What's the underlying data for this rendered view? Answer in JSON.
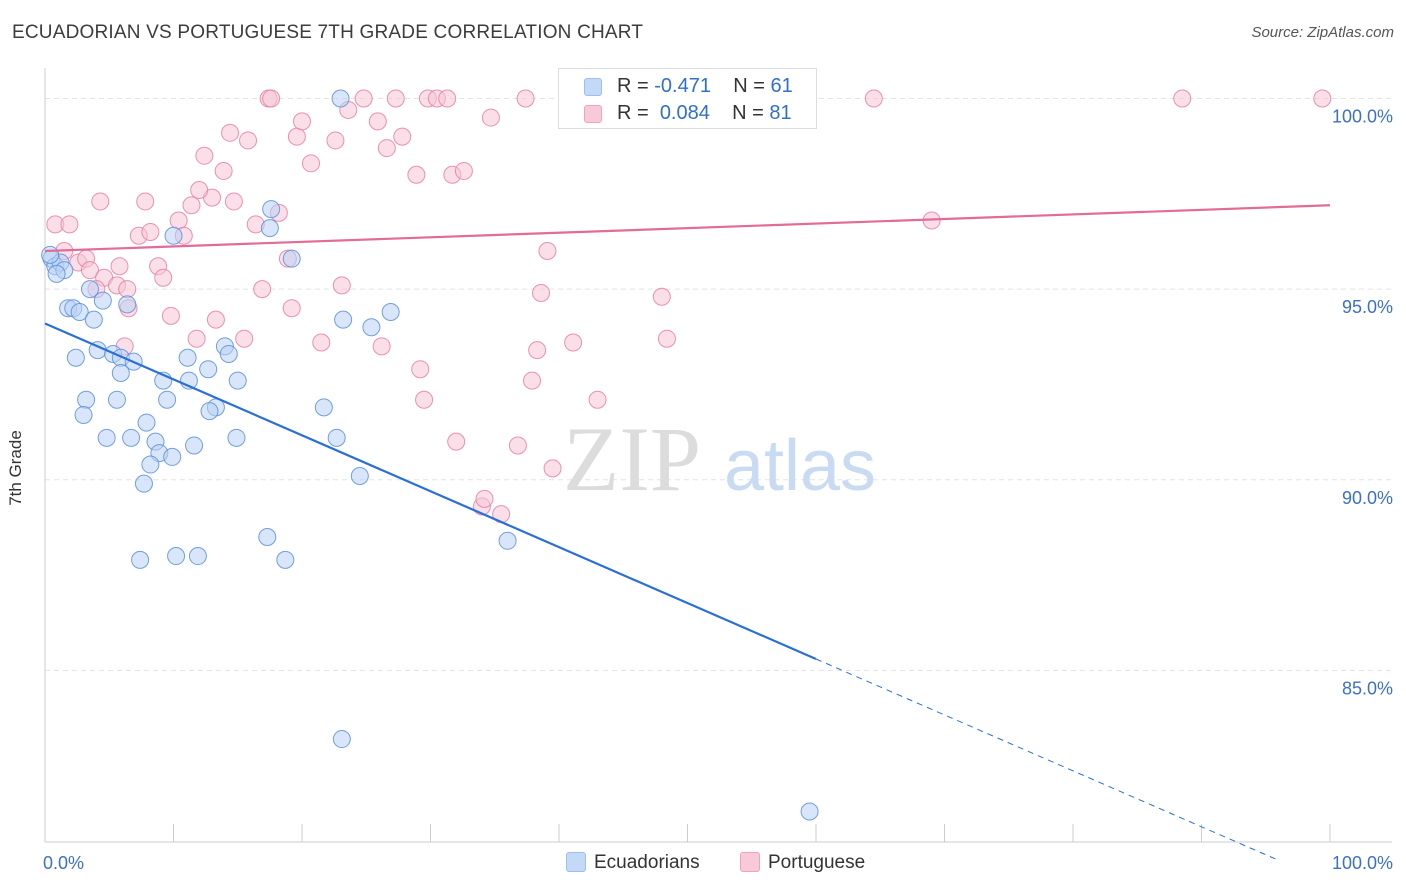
{
  "title": "ECUADORIAN VS PORTUGUESE 7TH GRADE CORRELATION CHART",
  "source": "Source: ZipAtlas.com",
  "watermark": {
    "zip": "ZIP",
    "atlas": "atlas"
  },
  "legend_stats": [
    {
      "r_label": "R =",
      "r_value": "-0.471",
      "n_label": "N =",
      "n_value": "61",
      "color": "#9dbff0",
      "fill": "#c4d9f7"
    },
    {
      "r_label": "R =",
      "r_value": "0.084",
      "n_label": "N =",
      "n_value": "81",
      "color": "#f0a3bd",
      "fill": "#f8cad9"
    }
  ],
  "chart_data": {
    "type": "scatter",
    "title": "ECUADORIAN VS PORTUGUESE 7TH GRADE CORRELATION CHART",
    "xlabel": "",
    "ylabel": "7th Grade",
    "xlim": [
      0,
      100
    ],
    "ylim": [
      80.5,
      100.8
    ],
    "x_tick_labels": [
      "0.0%",
      "100.0%"
    ],
    "y_ticks": [
      85,
      90,
      95,
      100
    ],
    "y_tick_labels": [
      "85.0%",
      "90.0%",
      "95.0%",
      "100.0%"
    ],
    "grid": true,
    "legend_position": "bottom-center",
    "series": [
      {
        "name": "Ecuadorians",
        "color": "#5b8fdb",
        "fill": "#b9d1f4",
        "trend": {
          "x0": 0,
          "y0": 94.1,
          "x1": 60,
          "y1": 85.3,
          "dash_to_x": 96
        },
        "points": [
          [
            0.5,
            95.8
          ],
          [
            0.8,
            95.6
          ],
          [
            1.2,
            95.7
          ],
          [
            1.5,
            95.5
          ],
          [
            0.9,
            95.4
          ],
          [
            1.8,
            94.5
          ],
          [
            2.2,
            94.5
          ],
          [
            2.7,
            94.4
          ],
          [
            3.5,
            95.0
          ],
          [
            3.8,
            94.2
          ],
          [
            4.5,
            94.7
          ],
          [
            4.1,
            93.4
          ],
          [
            5.3,
            93.3
          ],
          [
            2.4,
            93.2
          ],
          [
            5.9,
            93.2
          ],
          [
            6.9,
            93.1
          ],
          [
            5.9,
            92.8
          ],
          [
            3.2,
            92.1
          ],
          [
            5.6,
            92.1
          ],
          [
            3.0,
            91.7
          ],
          [
            7.9,
            91.5
          ],
          [
            4.8,
            91.1
          ],
          [
            6.7,
            91.1
          ],
          [
            8.6,
            91.0
          ],
          [
            8.9,
            90.7
          ],
          [
            9.9,
            90.6
          ],
          [
            8.2,
            90.4
          ],
          [
            7.7,
            89.9
          ],
          [
            11.6,
            90.9
          ],
          [
            7.4,
            87.9
          ],
          [
            10.2,
            88.0
          ],
          [
            11.9,
            88.0
          ],
          [
            14.0,
            93.5
          ],
          [
            14.3,
            93.3
          ],
          [
            12.7,
            92.9
          ],
          [
            11.1,
            93.2
          ],
          [
            11.2,
            92.6
          ],
          [
            9.2,
            92.6
          ],
          [
            15.0,
            92.6
          ],
          [
            13.3,
            91.9
          ],
          [
            12.8,
            91.8
          ],
          [
            14.9,
            91.1
          ],
          [
            17.6,
            97.1
          ],
          [
            17.5,
            96.6
          ],
          [
            10.0,
            96.4
          ],
          [
            19.2,
            95.8
          ],
          [
            23.0,
            100.0
          ],
          [
            23.2,
            94.2
          ],
          [
            25.4,
            94.0
          ],
          [
            26.9,
            94.4
          ],
          [
            22.7,
            91.1
          ],
          [
            21.7,
            91.9
          ],
          [
            24.5,
            90.1
          ],
          [
            17.3,
            88.5
          ],
          [
            18.7,
            87.9
          ],
          [
            36.0,
            88.4
          ],
          [
            23.1,
            83.2
          ],
          [
            59.5,
            81.3
          ],
          [
            0.4,
            95.9
          ],
          [
            6.4,
            94.6
          ],
          [
            9.5,
            92.1
          ]
        ]
      },
      {
        "name": "Portuguese",
        "color": "#e87fa3",
        "fill": "#f6c4d5",
        "trend": {
          "x0": 0,
          "y0": 96.0,
          "x1": 100,
          "y1": 97.2
        },
        "points": [
          [
            0.8,
            96.7
          ],
          [
            1.5,
            96.0
          ],
          [
            1.9,
            96.7
          ],
          [
            2.6,
            95.7
          ],
          [
            3.2,
            95.8
          ],
          [
            3.5,
            95.5
          ],
          [
            4.3,
            97.3
          ],
          [
            4.6,
            95.3
          ],
          [
            5.6,
            95.1
          ],
          [
            5.8,
            95.6
          ],
          [
            6.4,
            95.0
          ],
          [
            6.5,
            94.5
          ],
          [
            7.3,
            96.4
          ],
          [
            7.8,
            97.3
          ],
          [
            8.2,
            96.5
          ],
          [
            8.8,
            95.6
          ],
          [
            9.2,
            95.3
          ],
          [
            9.8,
            94.3
          ],
          [
            10.4,
            96.8
          ],
          [
            10.8,
            96.4
          ],
          [
            11.4,
            97.2
          ],
          [
            11.8,
            93.7
          ],
          [
            12.4,
            98.5
          ],
          [
            13.0,
            97.4
          ],
          [
            13.3,
            94.2
          ],
          [
            13.9,
            98.1
          ],
          [
            14.4,
            99.1
          ],
          [
            14.7,
            97.3
          ],
          [
            15.5,
            93.7
          ],
          [
            15.8,
            98.9
          ],
          [
            16.4,
            96.7
          ],
          [
            16.9,
            95.0
          ],
          [
            17.4,
            100.0
          ],
          [
            17.6,
            100.0
          ],
          [
            18.2,
            97.0
          ],
          [
            18.9,
            95.8
          ],
          [
            19.2,
            94.5
          ],
          [
            19.6,
            99.0
          ],
          [
            20.0,
            99.4
          ],
          [
            20.7,
            98.3
          ],
          [
            21.5,
            93.6
          ],
          [
            22.6,
            98.9
          ],
          [
            23.1,
            95.1
          ],
          [
            23.6,
            99.7
          ],
          [
            24.8,
            100.0
          ],
          [
            25.9,
            99.4
          ],
          [
            26.2,
            93.5
          ],
          [
            26.6,
            98.7
          ],
          [
            27.3,
            100.0
          ],
          [
            27.8,
            99.0
          ],
          [
            28.9,
            98.0
          ],
          [
            29.2,
            92.9
          ],
          [
            29.5,
            92.1
          ],
          [
            29.8,
            100.0
          ],
          [
            30.5,
            100.0
          ],
          [
            31.3,
            100.0
          ],
          [
            31.7,
            98.0
          ],
          [
            32.0,
            91.0
          ],
          [
            32.6,
            98.1
          ],
          [
            34.0,
            89.3
          ],
          [
            34.2,
            89.5
          ],
          [
            34.7,
            99.5
          ],
          [
            35.5,
            89.1
          ],
          [
            36.8,
            90.9
          ],
          [
            37.4,
            100.0
          ],
          [
            37.9,
            92.6
          ],
          [
            38.3,
            93.4
          ],
          [
            38.6,
            94.9
          ],
          [
            39.1,
            96.0
          ],
          [
            39.5,
            90.3
          ],
          [
            41.1,
            93.6
          ],
          [
            43.0,
            92.1
          ],
          [
            48.0,
            94.8
          ],
          [
            48.4,
            93.7
          ],
          [
            64.5,
            100.0
          ],
          [
            69.0,
            96.8
          ],
          [
            88.5,
            100.0
          ],
          [
            99.4,
            100.0
          ],
          [
            6.2,
            93.5
          ],
          [
            4.0,
            95.0
          ],
          [
            12.0,
            97.6
          ]
        ]
      }
    ]
  }
}
